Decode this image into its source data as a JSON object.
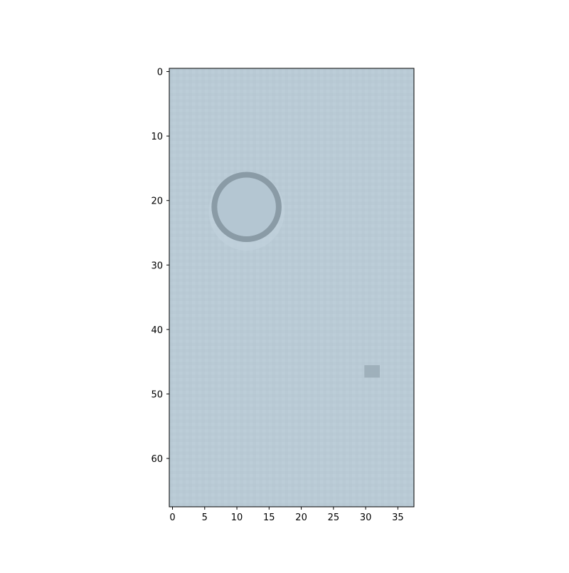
{
  "image": {
    "colors": {
      "background": "#b9cad5",
      "ring": "#8a9ba6",
      "ring_fill": "#b4c6d2",
      "spot": "#9aabb6",
      "axis": "#000000"
    },
    "extent": {
      "x": [
        0,
        37.5
      ],
      "y": [
        0,
        67.5
      ]
    },
    "x_axis": {
      "ticks": [
        0,
        5,
        10,
        15,
        20,
        25,
        30,
        35
      ]
    },
    "y_axis": {
      "ticks": [
        0,
        10,
        20,
        30,
        40,
        50,
        60
      ],
      "inverted": true
    },
    "features": [
      {
        "kind": "ring",
        "cx": 11.5,
        "cy": 21,
        "r": 5
      },
      {
        "kind": "spot",
        "cx": 31,
        "cy": 46.5,
        "r": 1.2
      }
    ]
  }
}
